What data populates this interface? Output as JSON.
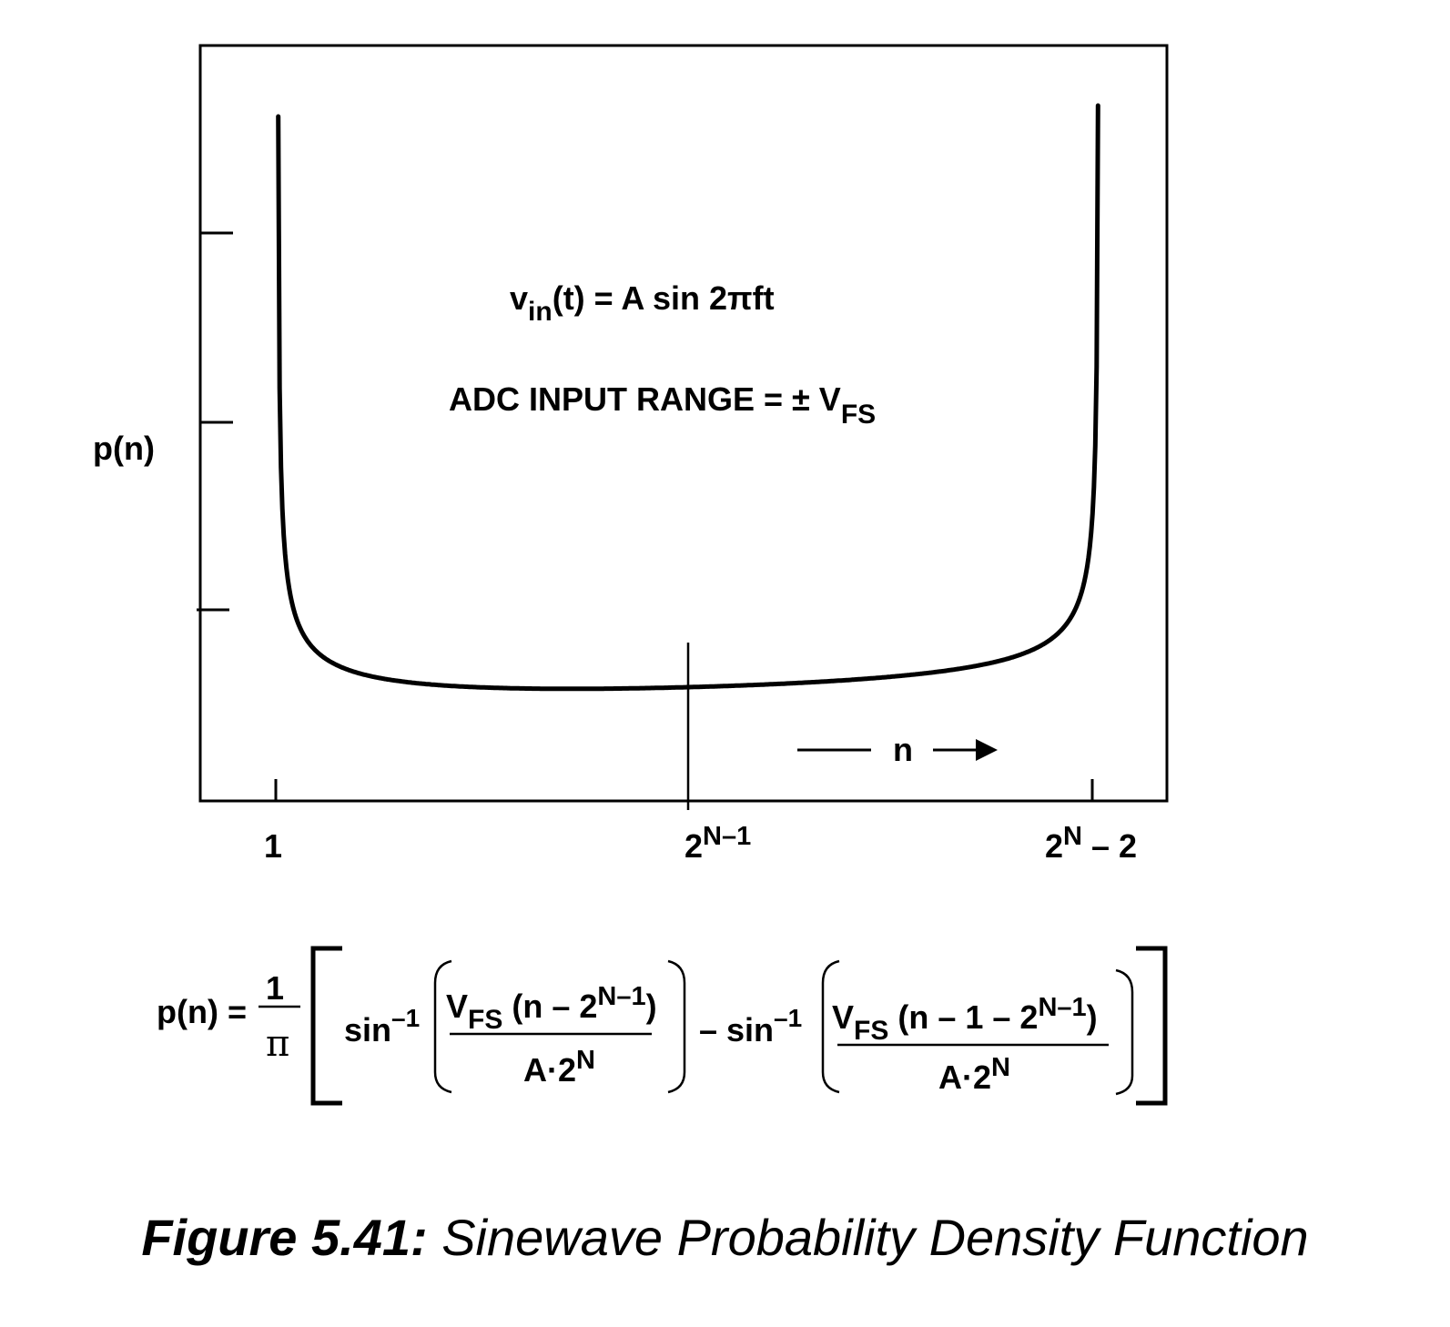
{
  "plot": {
    "y_label": "p(n)",
    "x_axis_label": "n",
    "x_ticks": [
      "1",
      "2",
      "N–1",
      "2",
      "N",
      " – 2"
    ],
    "annotation_vin": {
      "base": "v",
      "sub": "in",
      "rest": "(t) = A sin 2πft"
    },
    "annotation_range": {
      "text": "ADC INPUT RANGE = ± V",
      "sub": "FS"
    },
    "curve": "p(n) = 1 / (π·√(1 − u²)),  u = (n − 2^(N−1)) / (A·2^N / V_FS)"
  },
  "formula": {
    "lhs": "p(n) =",
    "numerator_1": "1",
    "denominator_pi": "π",
    "sin": "sin",
    "inverse_exp": "–1",
    "minus": "– sin",
    "term1_V": "V",
    "term1_FS": "FS",
    "term1_rest": " (n – 2",
    "term1_exp": "N–1",
    "term1_close": ")",
    "term2_V": "V",
    "term2_FS": "FS",
    "term2_rest": " (n – 1 – 2",
    "term2_exp": "N–1",
    "term2_close": ")",
    "denom_base": "A·2",
    "denom_exp": "N"
  },
  "caption": {
    "label": "Figure 5.41:",
    "title": "Sinewave Probability Density Function"
  }
}
